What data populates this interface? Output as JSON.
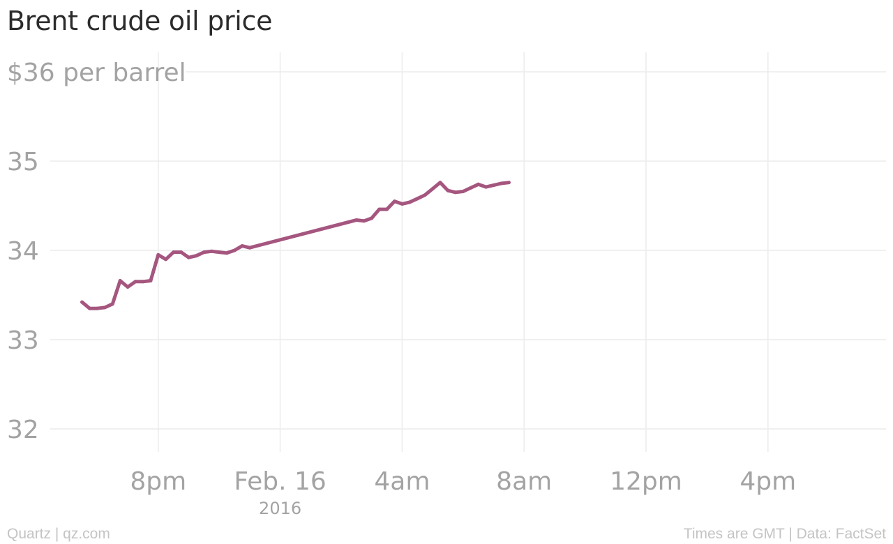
{
  "title": "Brent crude oil price",
  "footer": {
    "left": "Quartz | qz.com",
    "right": "Times are GMT | Data: FactSet"
  },
  "colors": {
    "line": "#a5567f",
    "grid": "#ececec",
    "tick_text": "#a3a3a3"
  },
  "chart_data": {
    "type": "line",
    "title": "Brent crude oil price",
    "x_unit": "hours relative to 4pm GMT, Feb. 15 2016",
    "xlim": [
      16,
      44
    ],
    "ylim": [
      32,
      36
    ],
    "grid": true,
    "y_ticks": [
      {
        "value": 36,
        "label": "$36 per barrel"
      },
      {
        "value": 35,
        "label": "35"
      },
      {
        "value": 34,
        "label": "34"
      },
      {
        "value": 33,
        "label": "33"
      },
      {
        "value": 32,
        "label": "32"
      }
    ],
    "x_ticks": [
      {
        "value": 20,
        "label": "8pm",
        "sublabel": ""
      },
      {
        "value": 24,
        "label": "Feb. 16",
        "sublabel": "2016"
      },
      {
        "value": 28,
        "label": "4am",
        "sublabel": ""
      },
      {
        "value": 32,
        "label": "8am",
        "sublabel": ""
      },
      {
        "value": 36,
        "label": "12pm",
        "sublabel": ""
      },
      {
        "value": 40,
        "label": "4pm",
        "sublabel": ""
      }
    ],
    "series": [
      {
        "x": [
          17.5,
          17.75,
          18.0,
          18.25,
          18.5,
          18.75,
          19.0,
          19.25,
          19.5,
          19.75,
          20.0,
          20.25,
          20.5,
          20.75,
          21.0,
          21.25,
          21.5,
          21.75,
          22.0,
          22.25,
          22.5,
          22.75,
          23.0,
          26.5,
          26.75,
          27.0,
          27.25,
          27.5,
          27.75,
          28.0,
          28.25,
          28.5,
          28.75,
          29.0,
          29.25,
          29.5,
          29.75,
          30.0,
          30.25,
          30.5,
          30.75,
          31.0,
          31.25,
          31.5
        ],
        "values": [
          33.42,
          33.35,
          33.35,
          33.36,
          33.4,
          33.66,
          33.59,
          33.65,
          33.65,
          33.66,
          33.95,
          33.9,
          33.98,
          33.98,
          33.92,
          33.94,
          33.98,
          33.99,
          33.98,
          33.97,
          34.0,
          34.05,
          34.03,
          34.34,
          34.33,
          34.36,
          34.46,
          34.46,
          34.55,
          34.52,
          34.54,
          34.58,
          34.62,
          34.69,
          34.76,
          34.67,
          34.65,
          34.66,
          34.7,
          34.74,
          34.71,
          34.73,
          34.75,
          34.76
        ]
      }
    ]
  }
}
